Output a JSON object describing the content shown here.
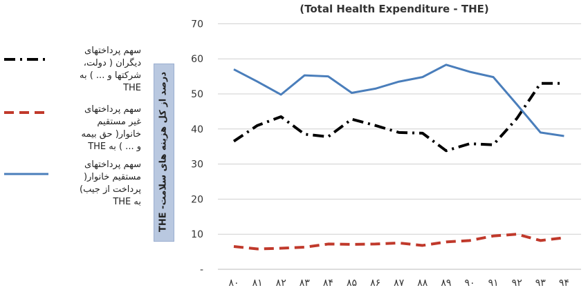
{
  "chart_data": {
    "type": "line",
    "title": "(Total Health Expenditure - THE)",
    "ylabel": "درصد از کل هزینه های سلامت- THE",
    "ylim": [
      0,
      70
    ],
    "yticks": [
      "-",
      "10",
      "20",
      "30",
      "40",
      "50",
      "60",
      "70"
    ],
    "grid": true,
    "legend_position": "left",
    "categories": [
      "۸۰",
      "۸۱",
      "۸۲",
      "۸۳",
      "۸۴",
      "۸۵",
      "۸۶",
      "۸۷",
      "۸۸",
      "۸۹",
      "۹۰",
      "۹۱",
      "۹۲",
      "۹۳",
      "۹۴"
    ],
    "series": [
      {
        "name": "سهم پرداختهای دیگران ( دولت، شرکتها و ... ) به THE",
        "color": "#000000",
        "style": "dashdot",
        "values": [
          36.5,
          41,
          43.5,
          38.5,
          37.8,
          42.8,
          41,
          39,
          38.8,
          33.8,
          35.8,
          35.5,
          43,
          53,
          53
        ]
      },
      {
        "name": "سهم پرداختهای غیر مستقیم خانوار( حق بیمه و ... ) به THE",
        "color": "#c0392b",
        "style": "dashed",
        "values": [
          6.5,
          5.8,
          6,
          6.3,
          7.2,
          7.1,
          7.2,
          7.5,
          6.8,
          7.8,
          8.2,
          9.5,
          10,
          8.2,
          9
        ]
      },
      {
        "name": "سهم پرداختهای مستقیم خانوار( پرداخت از جیب) به THE",
        "color": "#4a7ebb",
        "style": "solid",
        "values": [
          57,
          53.5,
          49.8,
          55.3,
          55,
          50.3,
          51.5,
          53.5,
          54.8,
          58.3,
          56.3,
          54.8,
          47,
          39,
          38
        ]
      }
    ]
  }
}
